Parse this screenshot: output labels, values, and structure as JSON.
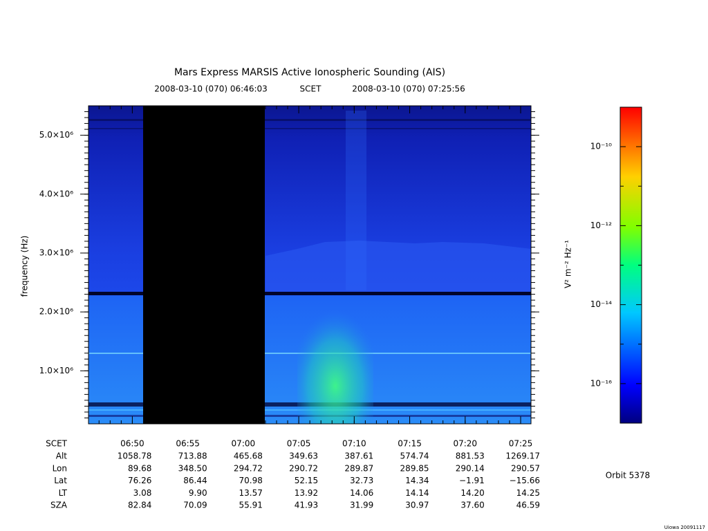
{
  "chart_data": {
    "type": "spectrogram",
    "title": "Mars Express MARSIS Active Ionospheric Sounding (AIS)",
    "time_label": "SCET",
    "xlim": [
      "2008-03-10 (070) 06:46:03",
      "2008-03-10 (070) 07:25:56"
    ],
    "xticks": [
      "06:50",
      "06:55",
      "07:00",
      "07:05",
      "07:10",
      "07:15",
      "07:20",
      "07:25"
    ],
    "ylabel": "frequency (Hz)",
    "ylim": [
      100000,
      5500000
    ],
    "yticks": [
      {
        "value": 1000000,
        "label": "1.0×10⁶"
      },
      {
        "value": 2000000,
        "label": "2.0×10⁶"
      },
      {
        "value": 3000000,
        "label": "3.0×10⁶"
      },
      {
        "value": 4000000,
        "label": "4.0×10⁶"
      },
      {
        "value": 5000000,
        "label": "5.0×10⁶"
      }
    ],
    "colorbar": {
      "label": "V² m⁻² Hz⁻¹",
      "log": true,
      "lim": [
        1e-17,
        1e-09
      ],
      "ticks": [
        {
          "value": 1e-16,
          "label": "10⁻¹⁶"
        },
        {
          "value": 1e-14,
          "label": "10⁻¹⁴"
        },
        {
          "value": 1e-12,
          "label": "10⁻¹²"
        },
        {
          "value": 1e-10,
          "label": "10⁻¹⁰"
        }
      ]
    },
    "ephemeris": [
      {
        "name": "Alt",
        "values": [
          "1058.78",
          "713.88",
          "465.68",
          "349.63",
          "387.61",
          "574.74",
          "881.53",
          "1269.17"
        ]
      },
      {
        "name": "Lon",
        "values": [
          "89.68",
          "348.50",
          "294.72",
          "290.72",
          "289.87",
          "289.85",
          "290.14",
          "290.57"
        ]
      },
      {
        "name": "Lat",
        "values": [
          "76.26",
          "86.44",
          "70.98",
          "52.15",
          "32.73",
          "14.34",
          "−1.91",
          "−15.66"
        ]
      },
      {
        "name": "LT",
        "values": [
          "3.08",
          "9.90",
          "13.57",
          "13.92",
          "14.06",
          "14.14",
          "14.20",
          "14.25"
        ]
      },
      {
        "name": "SZA",
        "values": [
          "82.84",
          "70.09",
          "55.91",
          "41.93",
          "31.99",
          "30.97",
          "37.60",
          "46.59"
        ]
      }
    ],
    "orbit": "Orbit 5378",
    "credit": "Uiowa 20091117"
  }
}
